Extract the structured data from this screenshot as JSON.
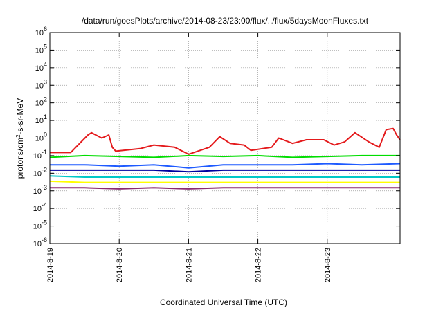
{
  "chart_data": {
    "type": "line",
    "title": "/data/run/goesPlots/archive/2014-08-23/23:00/flux/../flux/5daysMoonFluxes.txt",
    "xlabel": "Coordinated Universal Time (UTC)",
    "ylabel": {
      "prefix": "protons/cm",
      "sup": "2",
      "suffix": "-s-sr-MeV"
    },
    "yscale": "log",
    "ylim_exp": [
      -6,
      6
    ],
    "ytick_exponents": [
      -6,
      -5,
      -4,
      -3,
      -2,
      -1,
      0,
      1,
      2,
      3,
      4,
      5,
      6
    ],
    "xlim_days": [
      0,
      5.05
    ],
    "xticks": [
      {
        "day": 0,
        "label": "2014-8-19"
      },
      {
        "day": 1,
        "label": "2014-8-20"
      },
      {
        "day": 2,
        "label": "2014-8-21"
      },
      {
        "day": 3,
        "label": "2014-8-22"
      },
      {
        "day": 4,
        "label": "2014-8-23"
      }
    ],
    "grid": true,
    "series": [
      {
        "color": "#e41a1c",
        "points": [
          [
            0,
            0.15
          ],
          [
            0.3,
            0.15
          ],
          [
            0.55,
            1.5
          ],
          [
            0.6,
            2.0
          ],
          [
            0.75,
            1.0
          ],
          [
            0.85,
            1.5
          ],
          [
            0.9,
            0.3
          ],
          [
            0.95,
            0.18
          ],
          [
            1.3,
            0.25
          ],
          [
            1.5,
            0.4
          ],
          [
            1.8,
            0.3
          ],
          [
            2.0,
            0.12
          ],
          [
            2.3,
            0.3
          ],
          [
            2.45,
            1.2
          ],
          [
            2.6,
            0.5
          ],
          [
            2.8,
            0.4
          ],
          [
            2.9,
            0.2
          ],
          [
            3.2,
            0.3
          ],
          [
            3.3,
            1.0
          ],
          [
            3.5,
            0.5
          ],
          [
            3.7,
            0.8
          ],
          [
            3.95,
            0.8
          ],
          [
            4.1,
            0.4
          ],
          [
            4.25,
            0.6
          ],
          [
            4.4,
            2.0
          ],
          [
            4.6,
            0.6
          ],
          [
            4.75,
            0.3
          ],
          [
            4.85,
            3.0
          ],
          [
            4.95,
            3.5
          ],
          [
            5.0,
            1.5
          ],
          [
            5.05,
            0.8
          ]
        ]
      },
      {
        "color": "#00dd00",
        "points": [
          [
            0,
            0.08
          ],
          [
            0.5,
            0.1
          ],
          [
            1.0,
            0.09
          ],
          [
            1.5,
            0.08
          ],
          [
            2.0,
            0.1
          ],
          [
            2.5,
            0.09
          ],
          [
            3.0,
            0.1
          ],
          [
            3.5,
            0.08
          ],
          [
            4.0,
            0.09
          ],
          [
            4.5,
            0.1
          ],
          [
            5.05,
            0.1
          ]
        ]
      },
      {
        "color": "#1e5aff",
        "points": [
          [
            0,
            0.03
          ],
          [
            0.5,
            0.03
          ],
          [
            1.0,
            0.025
          ],
          [
            1.5,
            0.03
          ],
          [
            2.0,
            0.02
          ],
          [
            2.5,
            0.03
          ],
          [
            3.0,
            0.03
          ],
          [
            3.5,
            0.03
          ],
          [
            4.0,
            0.035
          ],
          [
            4.5,
            0.03
          ],
          [
            5.05,
            0.035
          ]
        ]
      },
      {
        "color": "#0000a0",
        "points": [
          [
            0,
            0.015
          ],
          [
            0.5,
            0.015
          ],
          [
            1.0,
            0.015
          ],
          [
            1.5,
            0.015
          ],
          [
            2.0,
            0.012
          ],
          [
            2.5,
            0.015
          ],
          [
            3.0,
            0.015
          ],
          [
            3.5,
            0.015
          ],
          [
            4.0,
            0.015
          ],
          [
            4.5,
            0.015
          ],
          [
            5.05,
            0.015
          ]
        ]
      },
      {
        "color": "#00c8c8",
        "points": [
          [
            0,
            0.007
          ],
          [
            0.5,
            0.006
          ],
          [
            1.0,
            0.006
          ],
          [
            1.5,
            0.006
          ],
          [
            2.0,
            0.006
          ],
          [
            2.5,
            0.006
          ],
          [
            3.0,
            0.006
          ],
          [
            3.5,
            0.006
          ],
          [
            4.0,
            0.006
          ],
          [
            4.5,
            0.006
          ],
          [
            5.05,
            0.006
          ]
        ]
      },
      {
        "color": "#ffff00",
        "points": [
          [
            0,
            0.0035
          ],
          [
            0.5,
            0.003
          ],
          [
            1.0,
            0.003
          ],
          [
            1.5,
            0.003
          ],
          [
            2.0,
            0.003
          ],
          [
            2.5,
            0.003
          ],
          [
            3.0,
            0.003
          ],
          [
            3.5,
            0.003
          ],
          [
            4.0,
            0.003
          ],
          [
            4.5,
            0.003
          ],
          [
            5.05,
            0.003
          ]
        ]
      },
      {
        "color": "#8b2a70",
        "points": [
          [
            0,
            0.0015
          ],
          [
            0.5,
            0.0015
          ],
          [
            1.0,
            0.0013
          ],
          [
            1.5,
            0.0015
          ],
          [
            2.0,
            0.0013
          ],
          [
            2.5,
            0.0015
          ],
          [
            3.0,
            0.0015
          ],
          [
            3.5,
            0.0015
          ],
          [
            4.0,
            0.0015
          ],
          [
            4.5,
            0.0015
          ],
          [
            5.05,
            0.0015
          ]
        ]
      }
    ]
  }
}
